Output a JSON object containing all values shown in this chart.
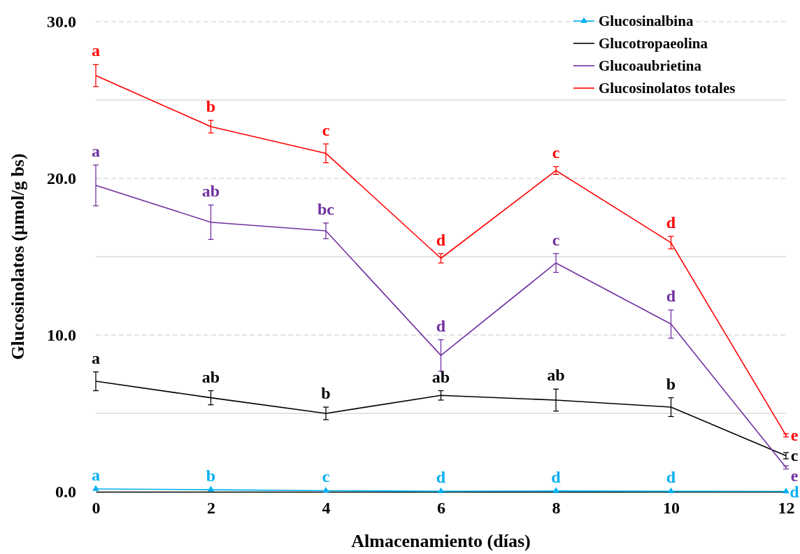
{
  "chart_data": {
    "type": "line",
    "xlabel": "Almacenamiento (días)",
    "ylabel": "Glucosinolatos (µmol/g bs)",
    "x": [
      0,
      2,
      4,
      6,
      8,
      10,
      12
    ],
    "xlim": [
      0,
      12
    ],
    "xticks": [
      0,
      2,
      4,
      6,
      8,
      10,
      12
    ],
    "ylim": [
      0,
      30
    ],
    "yticks": [
      {
        "value": 0,
        "label": "0.0"
      },
      {
        "value": 5,
        "label": null
      },
      {
        "value": 10,
        "label": "10.0"
      },
      {
        "value": 15,
        "label": null
      },
      {
        "value": 20,
        "label": "20.0"
      },
      {
        "value": 25,
        "label": null
      },
      {
        "value": 30,
        "label": "30.0"
      }
    ],
    "grid": "y",
    "legend": "top right",
    "series": [
      {
        "name": "Glucosinalbina",
        "color": "#00b0f0",
        "marker": "triangle",
        "values": [
          0.18,
          0.13,
          0.07,
          0.03,
          0.05,
          0.03,
          0.02
        ],
        "value_labels": [
          "a",
          "b",
          "c",
          "d",
          "d",
          "d",
          "d"
        ]
      },
      {
        "name": "Glucotropaeolina",
        "color": "#000000",
        "values": [
          7.05,
          6.0,
          5.0,
          6.15,
          5.85,
          5.4,
          2.3
        ],
        "errors": [
          0.6,
          0.45,
          0.4,
          0.3,
          0.7,
          0.6,
          0.2
        ],
        "value_labels": [
          "a",
          "ab",
          "b",
          "ab",
          "ab",
          "b",
          "c"
        ]
      },
      {
        "name": "Glucoaubrietina",
        "color": "#7030a0",
        "values": [
          19.55,
          17.2,
          16.65,
          8.7,
          14.6,
          10.7,
          1.55
        ],
        "errors": [
          1.3,
          1.1,
          0.5,
          1.0,
          0.6,
          0.9,
          0.1
        ],
        "value_labels": [
          "a",
          "ab",
          "bc",
          "d",
          "c",
          "d",
          "e"
        ]
      },
      {
        "name": "Glucosinolatos totales",
        "color": "#ff0000",
        "values": [
          26.56,
          23.3,
          21.6,
          14.9,
          20.5,
          15.9,
          3.6
        ],
        "errors": [
          0.7,
          0.4,
          0.6,
          0.3,
          0.25,
          0.4,
          0.1
        ],
        "value_labels": [
          "a",
          "b",
          "c",
          "d",
          "c",
          "d",
          "e"
        ]
      }
    ]
  }
}
